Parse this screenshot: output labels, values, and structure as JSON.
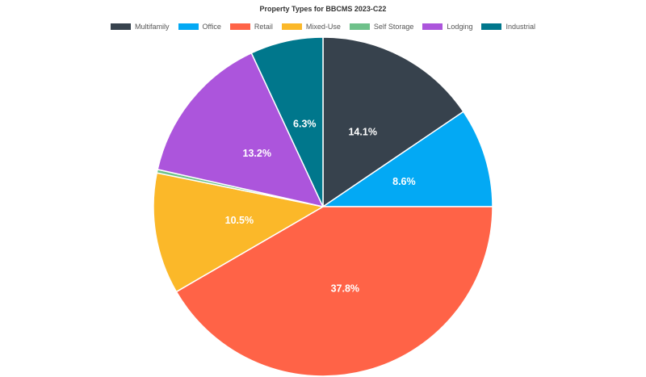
{
  "chart_data": {
    "type": "pie",
    "title": "Property Types for BBCMS 2023-C22",
    "legend_position": "top",
    "slices": [
      {
        "name": "Multifamily",
        "value": 14.1,
        "label": "14.1%",
        "color": "#37424d"
      },
      {
        "name": "Office",
        "value": 8.6,
        "label": "8.6%",
        "color": "#03a9f4"
      },
      {
        "name": "Retail",
        "value": 37.8,
        "label": "37.8%",
        "color": "#ff6347"
      },
      {
        "name": "Mixed-Use",
        "value": 10.5,
        "label": "10.5%",
        "color": "#fbb829"
      },
      {
        "name": "Self Storage",
        "value": 0.3,
        "label": "",
        "color": "#6ec18a"
      },
      {
        "name": "Lodging",
        "value": 13.2,
        "label": "13.2%",
        "color": "#ac55dc"
      },
      {
        "name": "Industrial",
        "value": 6.3,
        "label": "6.3%",
        "color": "#00778c"
      }
    ]
  }
}
